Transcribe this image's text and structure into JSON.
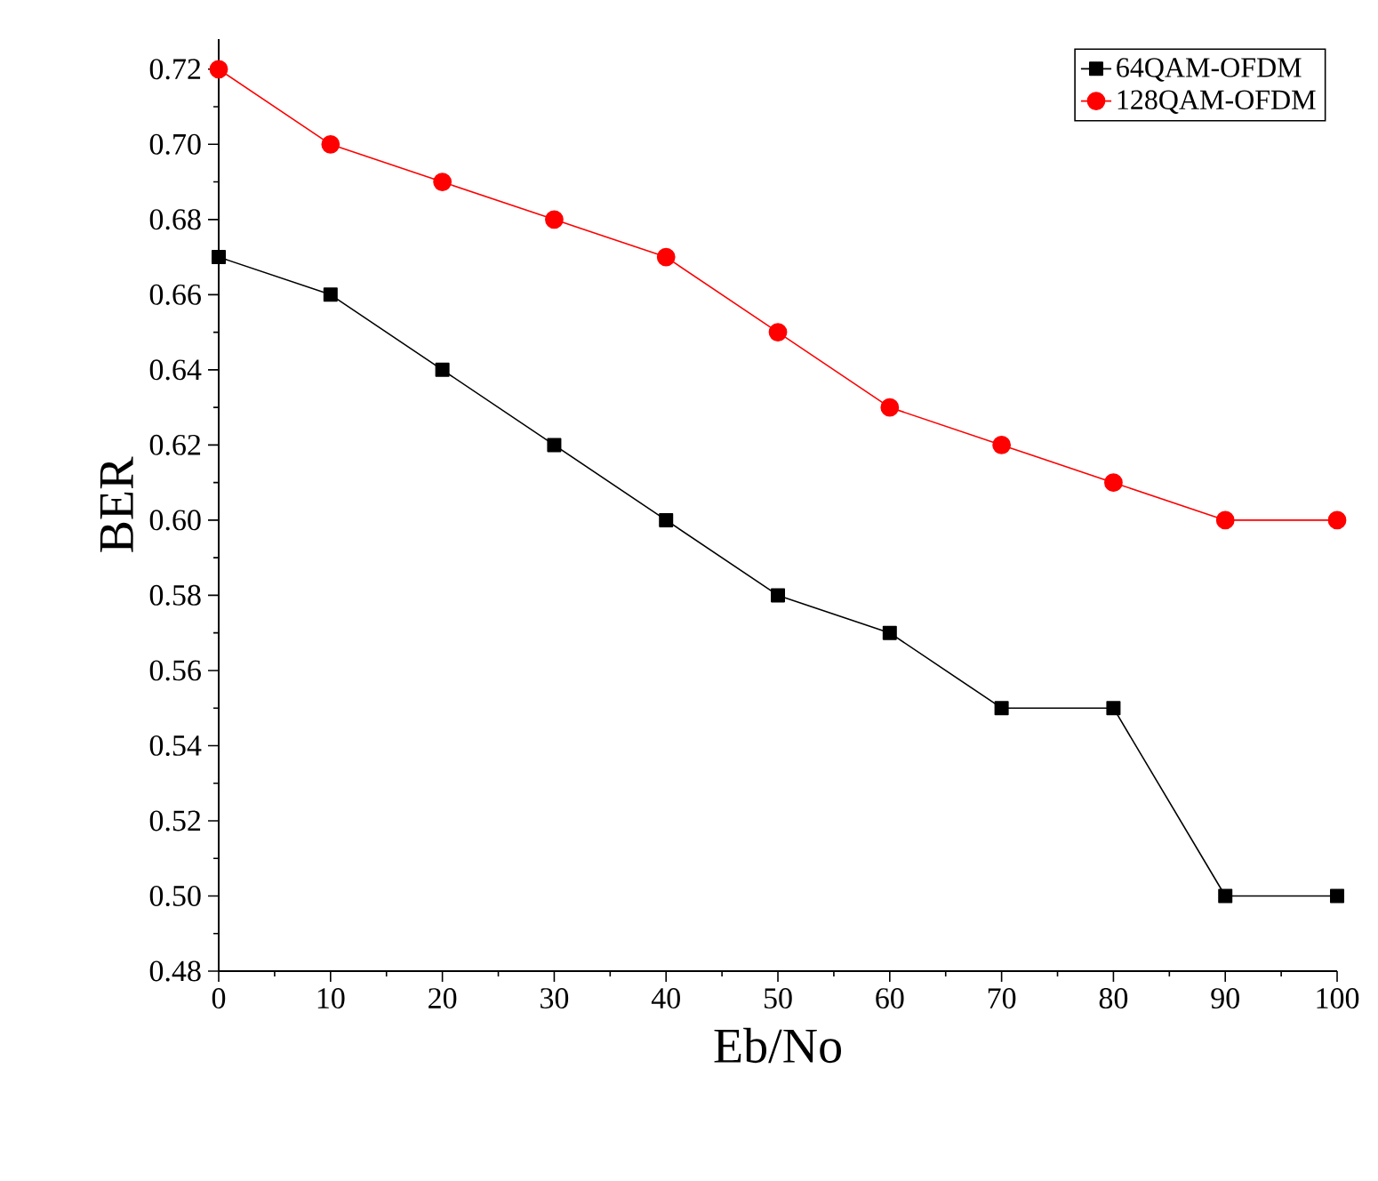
{
  "chart_data": {
    "type": "line",
    "xlabel": "Eb/No",
    "ylabel": "BER",
    "x": [
      0,
      10,
      20,
      30,
      40,
      50,
      60,
      70,
      80,
      90,
      100
    ],
    "series": [
      {
        "name": "64QAM-OFDM",
        "color": "#000000",
        "marker": "square",
        "values": [
          0.67,
          0.66,
          0.64,
          0.62,
          0.6,
          0.58,
          0.57,
          0.55,
          0.55,
          0.5,
          0.5
        ]
      },
      {
        "name": "128QAM-OFDM",
        "color": "#ff0000",
        "marker": "circle",
        "values": [
          0.72,
          0.7,
          0.69,
          0.68,
          0.67,
          0.65,
          0.63,
          0.62,
          0.61,
          0.6,
          0.6
        ]
      }
    ],
    "xlim": [
      0,
      100
    ],
    "ylim": [
      0.48,
      0.728
    ],
    "xticks": [
      0,
      10,
      20,
      30,
      40,
      50,
      60,
      70,
      80,
      90,
      100
    ],
    "yticks": [
      {
        "value": 0.48,
        "label": "0.48"
      },
      {
        "value": 0.5,
        "label": "0.50"
      },
      {
        "value": 0.52,
        "label": "0.52"
      },
      {
        "value": 0.54,
        "label": "0.54"
      },
      {
        "value": 0.56,
        "label": "0.56"
      },
      {
        "value": 0.58,
        "label": "0.58"
      },
      {
        "value": 0.6,
        "label": "0.60"
      },
      {
        "value": 0.62,
        "label": "0.62"
      },
      {
        "value": 0.64,
        "label": "0.64"
      },
      {
        "value": 0.66,
        "label": "0.66"
      },
      {
        "value": 0.68,
        "label": "0.68"
      },
      {
        "value": 0.7,
        "label": "0.70"
      },
      {
        "value": 0.72,
        "label": "0.72"
      }
    ],
    "legend": "top right",
    "grid": false,
    "line_style": "solid"
  }
}
